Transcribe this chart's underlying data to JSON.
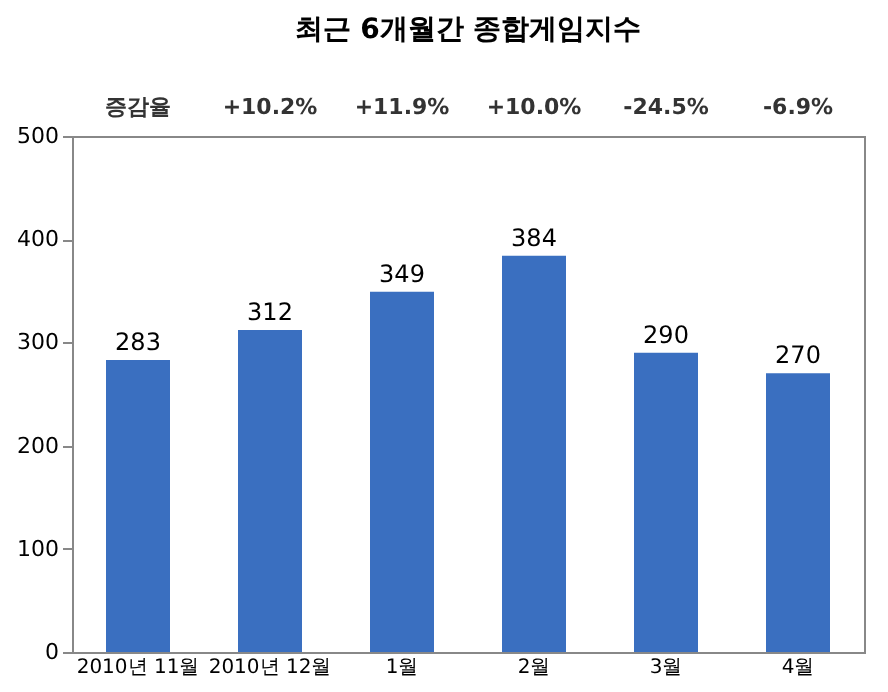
{
  "chart_data": {
    "type": "bar",
    "title": "최근 6개월간 종합게임지수",
    "categories": [
      "2010년 11월",
      "2010년 12월",
      "1월",
      "2월",
      "3월",
      "4월"
    ],
    "values": [
      283,
      312,
      349,
      384,
      290,
      270
    ],
    "color": "#3a6fc0",
    "ylim": [
      0,
      500
    ],
    "yticks": [
      0,
      100,
      200,
      300,
      400,
      500
    ],
    "grid": false,
    "data_labels": true,
    "annotations": [
      "증감율",
      "+10.2%",
      "+11.9%",
      "+10.0%",
      "-24.5%",
      "-6.9%"
    ]
  }
}
